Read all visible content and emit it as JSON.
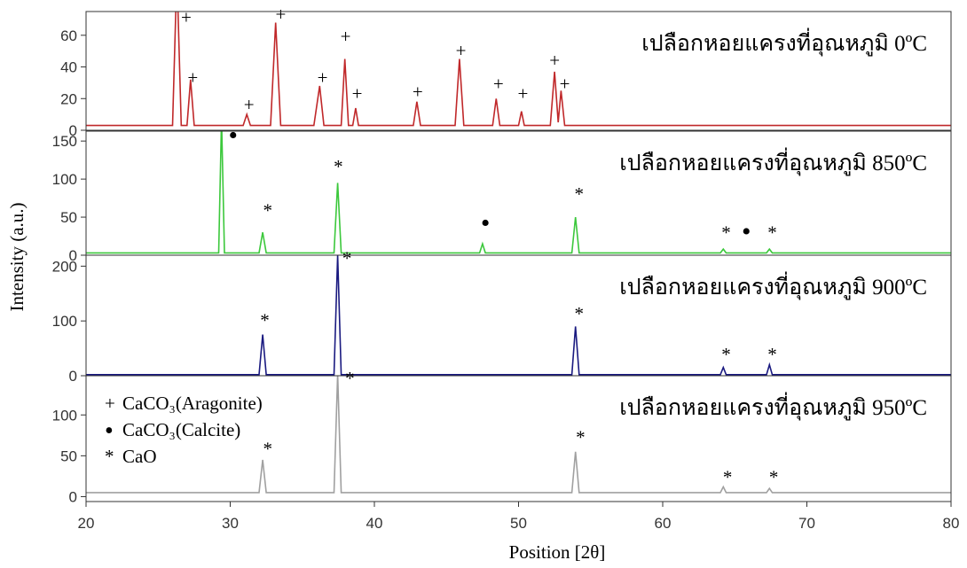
{
  "chart_data": {
    "type": "stacked-line",
    "xlabel": "Position [2θ]",
    "ylabel": "Intensity (a.u.)",
    "xlim": [
      20,
      80
    ],
    "xticks": [
      20,
      30,
      40,
      50,
      60,
      70,
      80
    ],
    "legend": [
      {
        "symbol": "+",
        "label": "CaCO₃(Aragonite)"
      },
      {
        "symbol": "•",
        "label": "CaCO₃(Calcite)"
      },
      {
        "symbol": "*",
        "label": "CaO"
      }
    ],
    "panels": [
      {
        "name": "เปลือกหอยแครงที่อุณหภูมิ 0ºC",
        "color": "#c0282a",
        "ylim": [
          0,
          75
        ],
        "yticks": [
          0,
          20,
          40,
          60
        ],
        "x": [
          20,
          26.0,
          26.3,
          26.6,
          27.0,
          27.25,
          27.5,
          30.9,
          31.15,
          31.4,
          32.8,
          33.15,
          33.5,
          35.8,
          36.2,
          36.5,
          37.7,
          37.95,
          38.2,
          38.5,
          38.7,
          38.9,
          42.7,
          42.95,
          43.2,
          45.6,
          45.9,
          46.2,
          48.2,
          48.45,
          48.7,
          50.0,
          50.2,
          50.4,
          52.2,
          52.5,
          52.75,
          52.95,
          53.2,
          80
        ],
        "values": [
          3,
          3,
          100,
          3,
          3,
          32,
          3,
          3,
          10,
          3,
          3,
          68,
          3,
          3,
          28,
          3,
          3,
          45,
          3,
          3,
          14,
          3,
          3,
          18,
          3,
          3,
          45,
          3,
          3,
          20,
          3,
          3,
          12,
          3,
          3,
          37,
          5,
          25,
          3,
          3
        ],
        "markers": [
          {
            "symbol": "+",
            "x": 26.95,
            "y": 73
          },
          {
            "symbol": "+",
            "x": 27.4,
            "y": 35
          },
          {
            "symbol": "+",
            "x": 31.3,
            "y": 18
          },
          {
            "symbol": "+",
            "x": 33.5,
            "y": 75
          },
          {
            "symbol": "+",
            "x": 36.4,
            "y": 35
          },
          {
            "symbol": "+",
            "x": 38.0,
            "y": 61
          },
          {
            "symbol": "+",
            "x": 38.8,
            "y": 25
          },
          {
            "symbol": "+",
            "x": 43.0,
            "y": 26
          },
          {
            "symbol": "+",
            "x": 46.0,
            "y": 52
          },
          {
            "symbol": "+",
            "x": 48.6,
            "y": 31
          },
          {
            "symbol": "+",
            "x": 50.3,
            "y": 25
          },
          {
            "symbol": "+",
            "x": 52.5,
            "y": 46
          },
          {
            "symbol": "+",
            "x": 53.2,
            "y": 31
          }
        ]
      },
      {
        "name": "เปลือกหอยแครงที่อุณหภูมิ 850ºC",
        "color": "#3cc83c",
        "ylim": [
          0,
          163
        ],
        "yticks": [
          0,
          50,
          100,
          150
        ],
        "x": [
          20,
          29.2,
          29.4,
          29.6,
          32.0,
          32.25,
          32.5,
          37.2,
          37.45,
          37.7,
          47.3,
          47.5,
          47.7,
          53.7,
          53.95,
          54.2,
          64.0,
          64.2,
          64.4,
          67.2,
          67.4,
          67.6,
          80
        ],
        "values": [
          3,
          3,
          180,
          3,
          3,
          30,
          3,
          3,
          95,
          3,
          3,
          15,
          3,
          3,
          50,
          3,
          3,
          8,
          3,
          3,
          8,
          3,
          3
        ],
        "markers": [
          {
            "symbol": "•",
            "x": 30.2,
            "y": 160
          },
          {
            "symbol": "*",
            "x": 32.6,
            "y": 62
          },
          {
            "symbol": "*",
            "x": 37.5,
            "y": 120
          },
          {
            "symbol": "•",
            "x": 47.7,
            "y": 45
          },
          {
            "symbol": "*",
            "x": 54.2,
            "y": 84
          },
          {
            "symbol": "*",
            "x": 64.4,
            "y": 33
          },
          {
            "symbol": "•",
            "x": 65.8,
            "y": 34
          },
          {
            "symbol": "*",
            "x": 67.6,
            "y": 33
          }
        ]
      },
      {
        "name": "เปลือกหอยแครงที่อุณหภูมิ 900ºC",
        "color": "#1a1a80",
        "ylim": [
          0,
          220
        ],
        "yticks": [
          0,
          100,
          200
        ],
        "x": [
          20,
          32.0,
          32.25,
          32.5,
          37.2,
          37.45,
          37.7,
          53.7,
          53.95,
          54.2,
          64.0,
          64.2,
          64.4,
          67.2,
          67.4,
          67.6,
          80
        ],
        "values": [
          2,
          2,
          75,
          2,
          2,
          220,
          2,
          2,
          90,
          2,
          2,
          15,
          2,
          2,
          20,
          2,
          2
        ],
        "markers": [
          {
            "symbol": "*",
            "x": 32.4,
            "y": 106
          },
          {
            "symbol": "*",
            "x": 38.1,
            "y": 219
          },
          {
            "symbol": "*",
            "x": 54.2,
            "y": 118
          },
          {
            "symbol": "*",
            "x": 64.4,
            "y": 44
          },
          {
            "symbol": "*",
            "x": 67.6,
            "y": 44
          }
        ]
      },
      {
        "name": "เปลือกหอยแครงที่อุณหภูมิ 950ºC",
        "color": "#a0a0a0",
        "ylim": [
          -6,
          148
        ],
        "yticks": [
          0,
          50,
          100
        ],
        "x": [
          20,
          32.0,
          32.25,
          32.5,
          37.2,
          37.45,
          37.7,
          53.7,
          53.95,
          54.2,
          64.0,
          64.2,
          64.4,
          67.2,
          67.4,
          67.6,
          80
        ],
        "values": [
          5,
          5,
          45,
          5,
          5,
          150,
          5,
          5,
          55,
          5,
          5,
          12,
          5,
          5,
          10,
          5,
          5
        ],
        "markers": [
          {
            "symbol": "*",
            "x": 32.6,
            "y": 62
          },
          {
            "symbol": "*",
            "x": 38.3,
            "y": 148
          },
          {
            "symbol": "*",
            "x": 54.3,
            "y": 76
          },
          {
            "symbol": "*",
            "x": 64.5,
            "y": 27
          },
          {
            "symbol": "*",
            "x": 67.7,
            "y": 27
          }
        ]
      }
    ]
  }
}
